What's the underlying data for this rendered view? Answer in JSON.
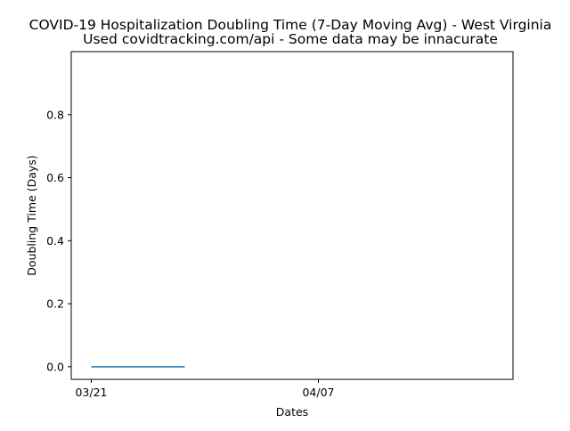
{
  "chart_data": {
    "type": "line",
    "title_line1": "COVID-19 Hospitalization Doubling Time (7-Day Moving Avg) - West Virginia",
    "title_line2": "Used covidtracking.com/api - Some data may be innacurate",
    "xlabel": "Dates",
    "ylabel": "Doubling Time (Days)",
    "x_tick_labels": [
      "03/21",
      "04/07"
    ],
    "y_tick_labels": [
      "0.0",
      "0.2",
      "0.4",
      "0.6",
      "0.8"
    ],
    "y_ticks": [
      0.0,
      0.2,
      0.4,
      0.6,
      0.8
    ],
    "ylim": [
      -0.04,
      1.0
    ],
    "grid": false,
    "series": [
      {
        "x": [
          "03/21",
          "03/22",
          "03/23",
          "03/24",
          "03/25",
          "03/26",
          "03/27",
          "03/28"
        ],
        "values": [
          0,
          0,
          0,
          0,
          0,
          0,
          0,
          0
        ],
        "color": "#1f77b4"
      }
    ]
  }
}
